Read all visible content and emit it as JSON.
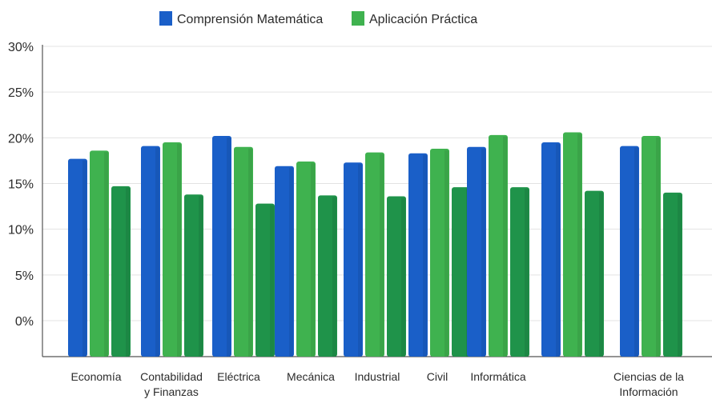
{
  "chart_data": {
    "type": "bar",
    "title": "",
    "xlabel": "",
    "ylabel": "",
    "ylim": [
      -4,
      30
    ],
    "yticks": [
      "30%",
      "25%",
      "20%",
      "15%",
      "10%",
      "5%",
      "0%"
    ],
    "ytick_values": [
      30,
      25,
      20,
      15,
      10,
      5,
      0
    ],
    "grid": true,
    "legend_position": "top-center",
    "categories": [
      [
        "Economía"
      ],
      [
        "Contabilidad",
        "y Finanzas"
      ],
      [
        "Eléctrica"
      ],
      [
        "Mecánica"
      ],
      [
        "Industrial"
      ],
      [
        "Civil"
      ],
      [
        "Informática"
      ],
      [
        ""
      ],
      [
        "Ciencias de la",
        "Información"
      ]
    ],
    "series": [
      {
        "name": "Comprensión Matemática",
        "color": "#1a5fc8",
        "values": [
          17.7,
          19.1,
          20.2,
          16.9,
          17.3,
          18.3,
          19.0,
          19.5,
          19.1
        ]
      },
      {
        "name": "Aplicación Práctica",
        "color": "#3fb24f",
        "values": [
          18.6,
          19.5,
          19.0,
          17.4,
          18.4,
          18.8,
          20.3,
          20.6,
          20.2
        ]
      },
      {
        "name": "",
        "color": "#1f934a",
        "values": [
          14.7,
          13.8,
          12.8,
          13.7,
          13.6,
          14.6,
          14.6,
          14.2,
          14.0
        ]
      }
    ]
  }
}
